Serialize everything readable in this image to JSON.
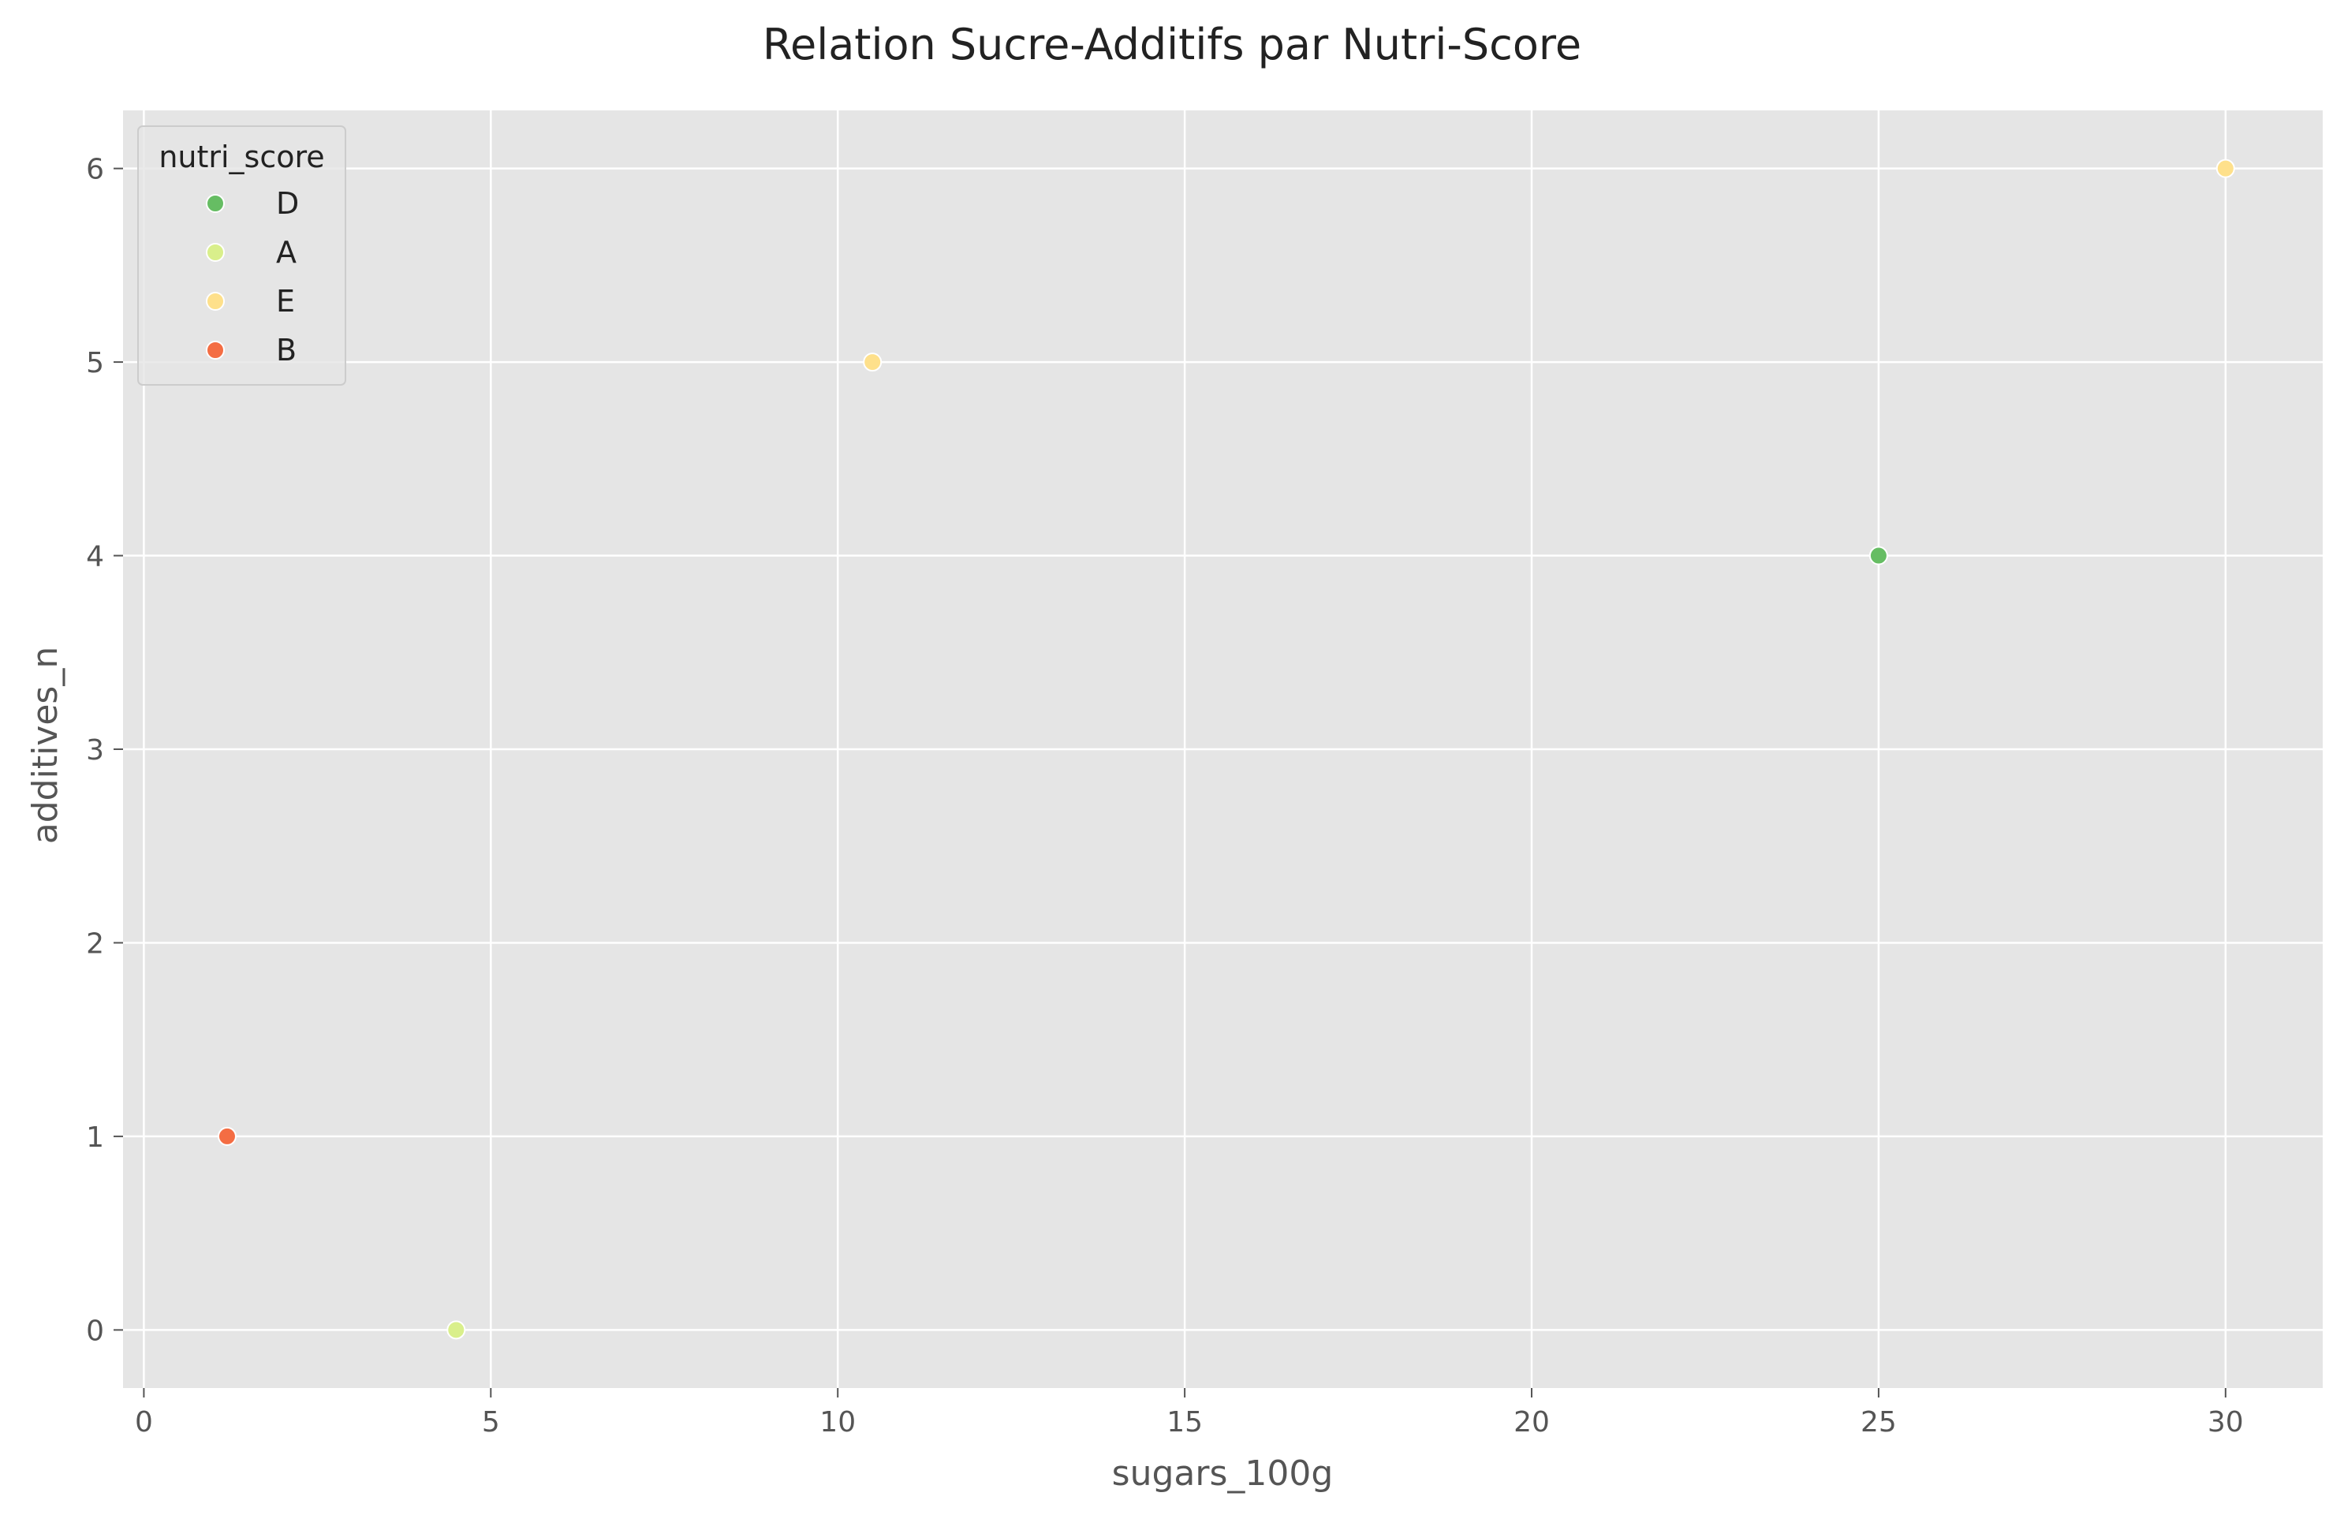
{
  "chart_data": {
    "type": "scatter",
    "title": "Relation Sucre-Additifs par Nutri-Score",
    "xlabel": "sugars_100g",
    "ylabel": "additives_n",
    "xlim": [
      -0.3,
      31.4
    ],
    "ylim": [
      -0.3,
      6.3
    ],
    "xticks": [
      0,
      5,
      10,
      15,
      20,
      25,
      30
    ],
    "yticks": [
      0,
      1,
      2,
      3,
      4,
      5,
      6
    ],
    "grid": true,
    "legend": {
      "title": "nutri_score",
      "placement": "top-left",
      "entries": [
        "D",
        "A",
        "E",
        "B"
      ]
    },
    "series": [
      {
        "name": "D",
        "color": "#66bd63",
        "points": [
          {
            "x": 25.0,
            "y": 4
          }
        ]
      },
      {
        "name": "A",
        "color": "#d9ef8b",
        "points": [
          {
            "x": 4.5,
            "y": 0
          }
        ]
      },
      {
        "name": "E",
        "color": "#fee08b",
        "points": [
          {
            "x": 10.5,
            "y": 5
          },
          {
            "x": 30.0,
            "y": 6
          }
        ]
      },
      {
        "name": "B",
        "color": "#f46d43",
        "points": [
          {
            "x": 1.2,
            "y": 1
          }
        ]
      }
    ],
    "colors": {
      "plot_background": "#e5e5e5",
      "grid": "#ffffff",
      "text": "#555555"
    }
  }
}
